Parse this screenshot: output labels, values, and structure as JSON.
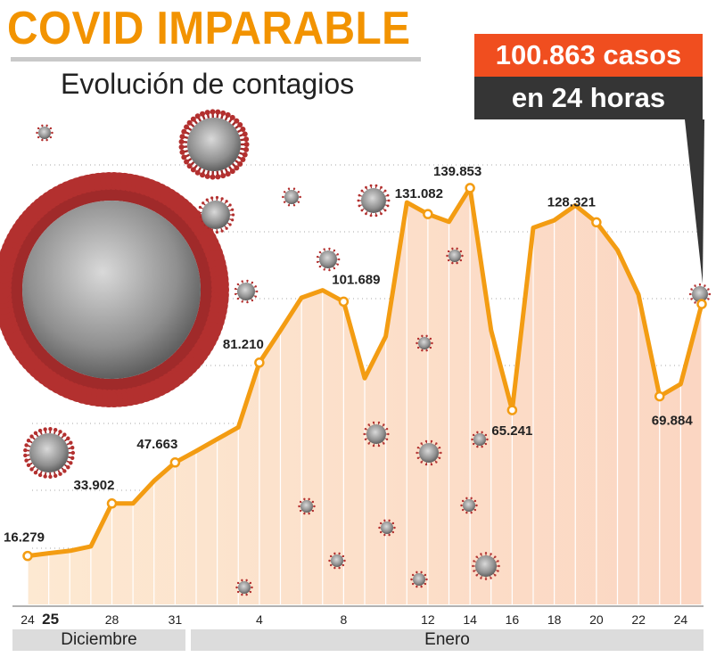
{
  "header": {
    "title": "COVID IMPARABLE",
    "subtitle": "Evolución de contagios",
    "highlight_cases": "100.863 casos",
    "highlight_period": "en 24 horas"
  },
  "colors": {
    "accent": "#f29300",
    "line": "#f39c12",
    "area_fill": "#fde6cc",
    "highlight_box": "#f04e1f",
    "dark_box": "#353535"
  },
  "months": [
    "Diciembre",
    "Enero"
  ],
  "chart_data": {
    "type": "area",
    "title": "COVID IMPARABLE",
    "subtitle": "Evolución de contagios",
    "x_ticks": [
      "24",
      "28",
      "31",
      "4",
      "8",
      "12",
      "14",
      "16",
      "18",
      "20",
      "22",
      "24",
      "25"
    ],
    "ylim": [
      0,
      150000
    ],
    "series": [
      {
        "x": [
          "24",
          "25",
          "26",
          "27",
          "28",
          "29",
          "30",
          "31",
          "1",
          "2",
          "3",
          "4",
          "5",
          "6",
          "7",
          "8",
          "9",
          "10",
          "11",
          "12",
          "13",
          "14",
          "15",
          "16",
          "17",
          "18",
          "19",
          "20",
          "21",
          "22",
          "23",
          "24",
          "25"
        ],
        "values": [
          16279,
          17200,
          18000,
          19500,
          33902,
          33902,
          41500,
          47663,
          51500,
          55500,
          59500,
          81210,
          92000,
          103000,
          105500,
          101689,
          76000,
          90000,
          135000,
          131082,
          128500,
          139853,
          92000,
          65241,
          126500,
          129000,
          134000,
          128321,
          119000,
          104000,
          69884,
          74000,
          100863
        ]
      }
    ],
    "data_labels": [
      {
        "x": "24",
        "value": "16.279"
      },
      {
        "x": "28",
        "value": "33.902"
      },
      {
        "x": "31",
        "value": "47.663"
      },
      {
        "x": "4",
        "value": "81.210"
      },
      {
        "x": "8",
        "value": "101.689"
      },
      {
        "x": "12",
        "value": "131.082"
      },
      {
        "x": "14",
        "value": "139.853"
      },
      {
        "x": "16",
        "value": "65.241"
      },
      {
        "x": "20",
        "value": "128.321"
      },
      {
        "x": "23",
        "value": "69.884"
      }
    ],
    "grid": true
  }
}
